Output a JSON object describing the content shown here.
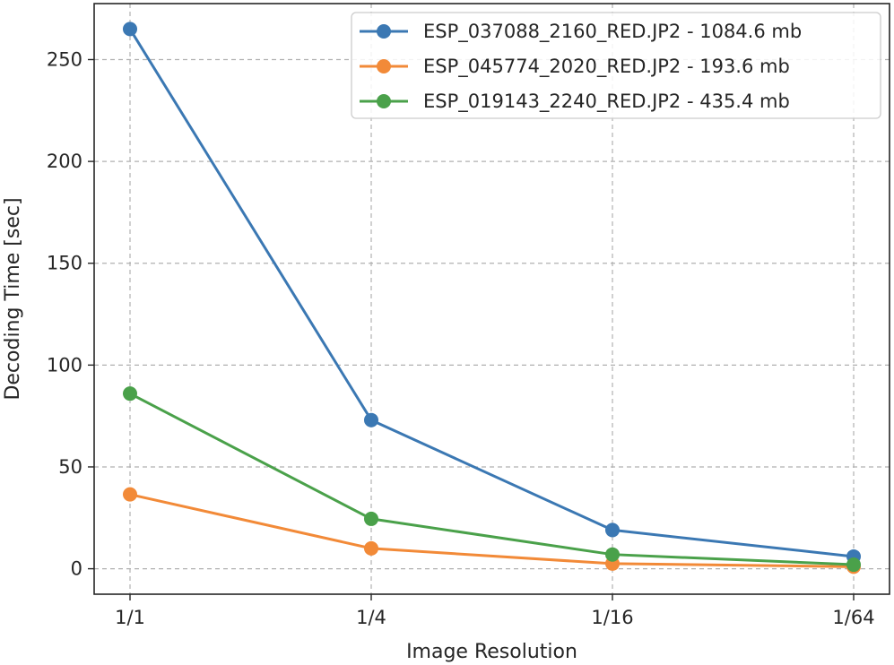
{
  "chart_data": {
    "type": "line",
    "xlabel": "Image Resolution",
    "ylabel": "Decoding Time [sec]",
    "categories": [
      "1/1",
      "1/4",
      "1/16",
      "1/64"
    ],
    "ylim": [
      -12.5,
      277.5
    ],
    "yticks": [
      0,
      50,
      100,
      150,
      200,
      250
    ],
    "grid": true,
    "legend_position": "top-right",
    "series": [
      {
        "name": "ESP_037088_2160_RED.JP2 - 1084.6 mb",
        "color": "#3b78b3",
        "values": [
          265,
          73,
          19,
          6
        ]
      },
      {
        "name": "ESP_045774_2020_RED.JP2 - 193.6 mb",
        "color": "#f28a38",
        "values": [
          36.5,
          10,
          2.5,
          1
        ]
      },
      {
        "name": "ESP_019143_2240_RED.JP2 - 435.4 mb",
        "color": "#4aa14a",
        "values": [
          86,
          24.5,
          7,
          2
        ]
      }
    ]
  }
}
